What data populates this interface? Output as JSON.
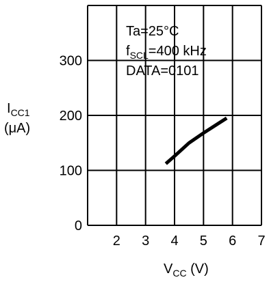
{
  "chart_data": {
    "type": "line",
    "annotation": {
      "line1": "Ta=25°C",
      "line2_main": "f",
      "line2_sub": "SCL",
      "line2_rest": "=400 kHz",
      "line3": "DATA=0101"
    },
    "ylabel": {
      "main": "I",
      "sub": "CC1",
      "unit": "(μA)"
    },
    "xlabel": {
      "main": "V",
      "sub": "CC",
      "unit": " (V)"
    },
    "xlim": [
      1,
      7
    ],
    "ylim": [
      0,
      400
    ],
    "x_ticks": [
      "2",
      "3",
      "4",
      "5",
      "6",
      "7"
    ],
    "y_ticks": [
      "0",
      "100",
      "200",
      "300"
    ],
    "grid": true,
    "series": [
      {
        "x": [
          3.7,
          4.0,
          4.5,
          5.0,
          5.5,
          5.8
        ],
        "y": [
          112,
          126,
          150,
          168,
          185,
          195
        ]
      }
    ]
  }
}
